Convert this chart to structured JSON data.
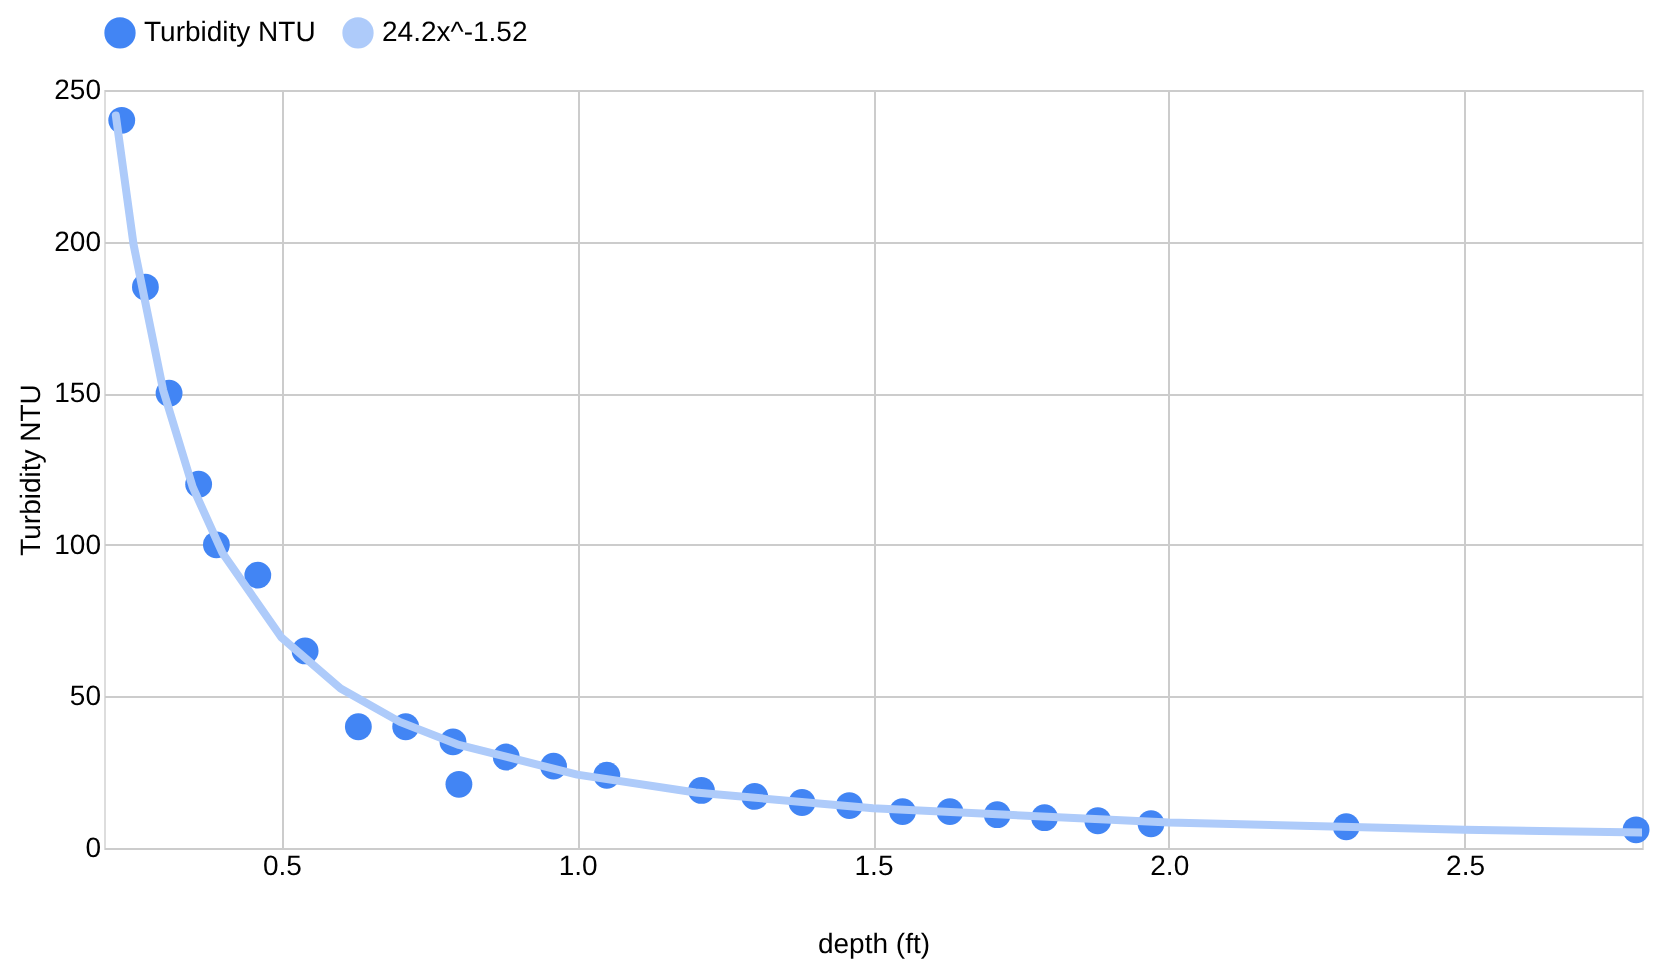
{
  "chart_data": {
    "type": "scatter",
    "xlabel": "depth (ft)",
    "ylabel": "Turbidity NTU",
    "xlim": [
      0.2,
      2.8
    ],
    "xticks": [
      0.5,
      {
        "value": 1,
        "label": "1.0"
      },
      1.5,
      {
        "value": 2,
        "label": "2.0"
      },
      2.5
    ],
    "ylim": [
      0,
      250
    ],
    "yticks": [
      0,
      50,
      100,
      150,
      200,
      250
    ],
    "grid": true,
    "legend": "top",
    "series": [
      {
        "name": "Turbidity NTU",
        "marker": "circle",
        "color": "#4285f4",
        "x": [
          0.23,
          0.27,
          0.31,
          0.36,
          0.39,
          0.46,
          0.54,
          0.63,
          0.71,
          0.79,
          0.8,
          0.88,
          0.96,
          1.05,
          1.21,
          1.3,
          1.38,
          1.46,
          1.55,
          1.63,
          1.71,
          1.79,
          1.88,
          1.97,
          2.3,
          2.79
        ],
        "values": [
          240,
          185,
          150,
          120,
          100,
          90,
          65,
          40,
          40,
          35,
          21,
          30,
          27,
          24,
          19,
          17,
          15,
          14,
          12,
          12,
          11,
          10,
          9,
          8,
          7,
          6
        ]
      },
      {
        "name": "24.2x^-1.52",
        "type": "line",
        "color": "#aecbfa",
        "line_style": "solid",
        "x": [
          0.22,
          0.25,
          0.3,
          0.35,
          0.4,
          0.5,
          0.6,
          0.7,
          0.8,
          1.0,
          1.2,
          1.5,
          2.0,
          2.5,
          2.8
        ],
        "values": [
          241.6,
          199,
          151,
          119,
          97.4,
          69.4,
          52.6,
          41.6,
          34.0,
          24.2,
          18.3,
          13.1,
          8.4,
          6.0,
          5.1
        ]
      }
    ]
  }
}
